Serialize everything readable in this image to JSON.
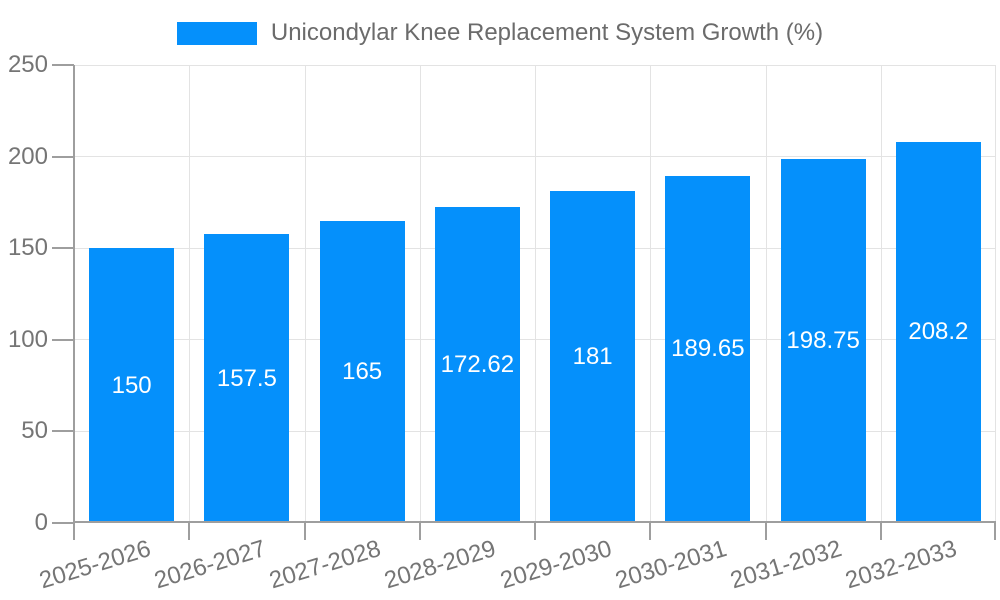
{
  "chart_data": {
    "type": "bar",
    "legend": {
      "position": "top",
      "label": "Unicondylar Knee Replacement System Growth (%)"
    },
    "categories": [
      "2025-2026",
      "2026-2027",
      "2027-2028",
      "2028-2029",
      "2029-2030",
      "2030-2031",
      "2031-2032",
      "2032-2033"
    ],
    "series": [
      {
        "name": "Unicondylar Knee Replacement System Growth (%)",
        "values": [
          150,
          157.5,
          165,
          172.62,
          181,
          189.65,
          198.75,
          208.2
        ]
      }
    ],
    "value_labels": [
      "150",
      "157.5",
      "165",
      "172.62",
      "181",
      "189.65",
      "198.75",
      "208.2"
    ],
    "xlabel": "",
    "ylabel": "",
    "ylim": [
      0,
      250
    ],
    "yticks": [
      "0",
      "50",
      "100",
      "150",
      "200",
      "250"
    ],
    "grid": true,
    "colors": {
      "bar": "#0590fb",
      "gridline": "#e3e3e3",
      "axis": "#9e9e9e",
      "tick": "#9e9e9e",
      "axis_label": "#757575",
      "value_label": "#ffffff",
      "legend_text": "#6b6b6b"
    }
  }
}
